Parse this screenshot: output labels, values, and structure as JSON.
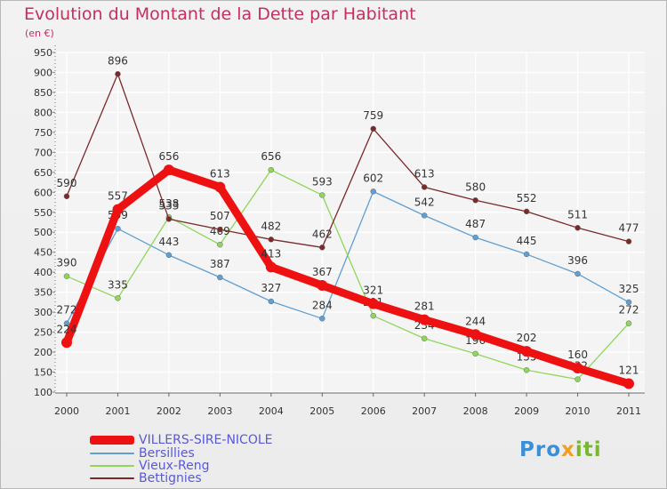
{
  "chart_data": {
    "type": "line",
    "title": "Evolution du Montant de la Dette par Habitant",
    "subtitle": "(en €)",
    "categories": [
      "2000",
      "2001",
      "2002",
      "2003",
      "2004",
      "2005",
      "2006",
      "2007",
      "2008",
      "2009",
      "2010",
      "2011"
    ],
    "ylim": [
      100,
      950
    ],
    "yticks": [
      100,
      150,
      200,
      250,
      300,
      350,
      400,
      450,
      500,
      550,
      600,
      650,
      700,
      750,
      800,
      850,
      900,
      950
    ],
    "grid": true,
    "legend_position": "bottom-left",
    "series": [
      {
        "name": "VILLERS-SIRE-NICOLE",
        "color": "#ee1111",
        "values": [
          224,
          557,
          656,
          613,
          413,
          367,
          321,
          281,
          244,
          202,
          160,
          121
        ]
      },
      {
        "name": "Bersillies",
        "color": "#5f9fd4",
        "values": [
          272,
          509,
          443,
          387,
          327,
          284,
          602,
          542,
          487,
          445,
          396,
          325
        ]
      },
      {
        "name": "Vieux-Reng",
        "color": "#8fd65a",
        "values": [
          390,
          335,
          538,
          469,
          656,
          593,
          291,
          234,
          196,
          155,
          132,
          272
        ]
      },
      {
        "name": "Bettignies",
        "color": "#7a2a2a",
        "values": [
          590,
          896,
          533,
          507,
          482,
          462,
          759,
          613,
          580,
          552,
          511,
          477
        ]
      }
    ]
  },
  "logo": {
    "part1": "Pro",
    "part2": "x",
    "part3": "iti"
  }
}
